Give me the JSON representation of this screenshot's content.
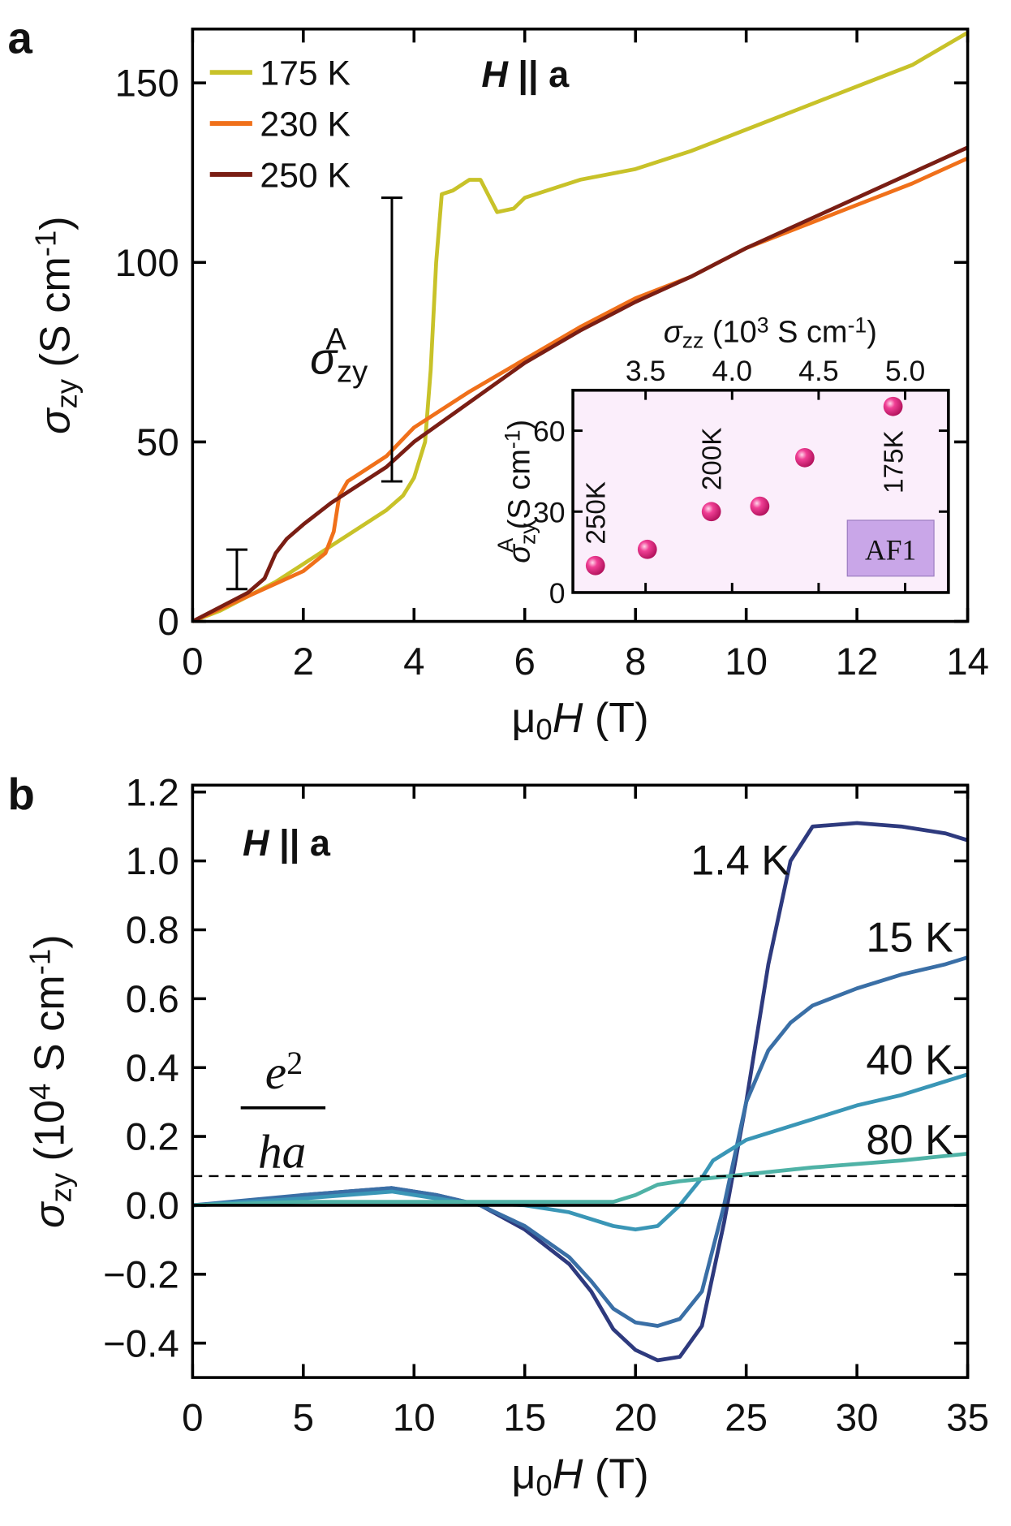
{
  "chart_data": [
    {
      "type": "line",
      "panel": "a",
      "annotation": [
        "H",
        " || a"
      ],
      "xlabel": [
        "μ",
        "0",
        "H",
        " (T)"
      ],
      "ylabel": [
        "σ",
        "zy",
        " (S cm",
        "-1",
        ")"
      ],
      "xlim": [
        0,
        14
      ],
      "xticks": [
        0,
        2,
        4,
        6,
        8,
        10,
        12,
        14
      ],
      "ylim": [
        0,
        165
      ],
      "yticks": [
        0,
        50,
        100,
        150
      ],
      "series": [
        {
          "name": "175 K",
          "color": "#c8c229",
          "x": [
            0,
            0.5,
            1,
            1.5,
            2,
            2.5,
            3,
            3.5,
            3.8,
            4.0,
            4.2,
            4.3,
            4.4,
            4.5,
            4.7,
            5,
            5.2,
            5.5,
            5.8,
            6,
            7,
            8,
            9,
            10,
            11,
            12,
            13,
            14
          ],
          "values": [
            0,
            3,
            7,
            11,
            16,
            21,
            26,
            31,
            35,
            40,
            50,
            70,
            100,
            119,
            120,
            123,
            123,
            114,
            115,
            118,
            123,
            126,
            131,
            137,
            143,
            149,
            155,
            164
          ]
        },
        {
          "name": "230 K",
          "color": "#f0701a",
          "x": [
            0,
            1,
            2,
            2.4,
            2.55,
            2.65,
            2.8,
            3,
            3.5,
            4,
            5,
            6,
            7,
            8,
            9,
            10,
            11,
            12,
            13,
            14
          ],
          "values": [
            0,
            7,
            14,
            19,
            25,
            35,
            39,
            41,
            46,
            54,
            64,
            73,
            82,
            90,
            96,
            104,
            110,
            116,
            122,
            129
          ]
        },
        {
          "name": "250 K",
          "color": "#7a1e14",
          "x": [
            0,
            1,
            1.3,
            1.5,
            1.7,
            2,
            2.5,
            3,
            3.5,
            4,
            5,
            6,
            7,
            8,
            9,
            10,
            11,
            12,
            13,
            14
          ],
          "values": [
            0,
            8,
            12,
            19,
            23,
            27,
            33,
            38,
            43,
            50,
            61,
            72,
            81,
            89,
            96,
            104,
            111,
            118,
            125,
            132
          ]
        }
      ],
      "error_bars": [
        {
          "x": 0.8,
          "low": 9,
          "high": 20
        },
        {
          "x": 3.6,
          "low": 39,
          "high": 118
        }
      ],
      "error_label": [
        "σ",
        "zy",
        "A"
      ],
      "legend": "upper left"
    },
    {
      "type": "scatter",
      "inset": true,
      "xlabel": [
        "σ",
        "zz",
        " (10",
        "3",
        " S cm",
        "-1",
        ")"
      ],
      "ylabel": [
        "σ",
        "zy",
        "A",
        " (S cm",
        "-1",
        ")"
      ],
      "xlim": [
        3.08,
        5.25
      ],
      "xticks": [
        3.5,
        {
          "value": 4.0,
          "label": "4.0"
        },
        4.5,
        {
          "value": 5.0,
          "label": "5.0"
        }
      ],
      "ylim": [
        0,
        75
      ],
      "yticks": [
        0,
        30,
        60
      ],
      "color": "#e8197a",
      "x": [
        3.21,
        3.51,
        3.88,
        4.16,
        4.42,
        4.93
      ],
      "values": [
        10,
        16,
        30,
        32,
        50,
        69
      ],
      "point_labels": [
        "250K",
        null,
        "200K",
        null,
        null,
        "175K"
      ],
      "box_label": "AF1"
    },
    {
      "type": "line",
      "panel": "b",
      "annotation": [
        "H",
        " || a"
      ],
      "xlabel": [
        "μ",
        "0",
        "H",
        " (T)"
      ],
      "ylabel": [
        "σ",
        "zy",
        " (10",
        "4",
        " S cm",
        "-1",
        ")"
      ],
      "xlim": [
        0,
        35
      ],
      "xticks": [
        0,
        5,
        10,
        15,
        20,
        25,
        30,
        35
      ],
      "ylim": [
        -0.5,
        1.22
      ],
      "yticks": [
        {
          "value": -0.4,
          "label": "−0.4"
        },
        {
          "value": -0.2,
          "label": "−0.2"
        },
        {
          "value": 0,
          "label": "0.0"
        },
        0.2,
        0.4,
        0.6,
        0.8,
        {
          "value": 1.0,
          "label": "1.0"
        },
        1.2
      ],
      "reference_line": {
        "value": 0.085,
        "label": [
          "e",
          "2",
          "ha"
        ]
      },
      "series": [
        {
          "name": "1.4 K",
          "color": "#2e3a7e",
          "x": [
            0,
            3,
            5,
            9,
            11,
            13,
            15,
            17,
            18,
            19,
            20,
            21,
            22,
            23,
            24,
            25,
            26,
            27,
            28,
            30,
            32,
            34,
            35
          ],
          "values": [
            0,
            0.01,
            0.03,
            0.05,
            0.03,
            0,
            -0.07,
            -0.17,
            -0.25,
            -0.36,
            -0.42,
            -0.45,
            -0.44,
            -0.35,
            -0.05,
            0.3,
            0.7,
            1.0,
            1.1,
            1.11,
            1.1,
            1.08,
            1.06
          ]
        },
        {
          "name": "15 K",
          "color": "#3a6fa6",
          "x": [
            0,
            5,
            9,
            11,
            13,
            15,
            17,
            18,
            19,
            20,
            21,
            22,
            23,
            24,
            25,
            26,
            27,
            28,
            30,
            32,
            34,
            35
          ],
          "values": [
            0,
            0.03,
            0.05,
            0.03,
            0,
            -0.06,
            -0.15,
            -0.22,
            -0.3,
            -0.34,
            -0.35,
            -0.33,
            -0.25,
            0,
            0.3,
            0.45,
            0.53,
            0.58,
            0.63,
            0.67,
            0.7,
            0.72
          ]
        },
        {
          "name": "40 K",
          "color": "#3a96b6",
          "x": [
            0,
            5,
            9,
            12,
            15,
            17,
            19,
            20,
            21,
            22,
            23,
            23.5,
            24,
            25,
            27,
            30,
            32,
            35
          ],
          "values": [
            0,
            0.02,
            0.04,
            0.01,
            0,
            -0.02,
            -0.06,
            -0.07,
            -0.06,
            0,
            0.08,
            0.13,
            0.15,
            0.19,
            0.23,
            0.29,
            0.32,
            0.38
          ]
        },
        {
          "name": "80 K",
          "color": "#4fb2a6",
          "x": [
            0,
            5,
            10,
            15,
            19,
            20,
            21,
            22,
            25,
            28,
            30,
            32,
            35
          ],
          "values": [
            0,
            0.01,
            0.01,
            0.01,
            0.01,
            0.03,
            0.06,
            0.07,
            0.09,
            0.11,
            0.12,
            0.13,
            0.15
          ]
        }
      ]
    }
  ]
}
